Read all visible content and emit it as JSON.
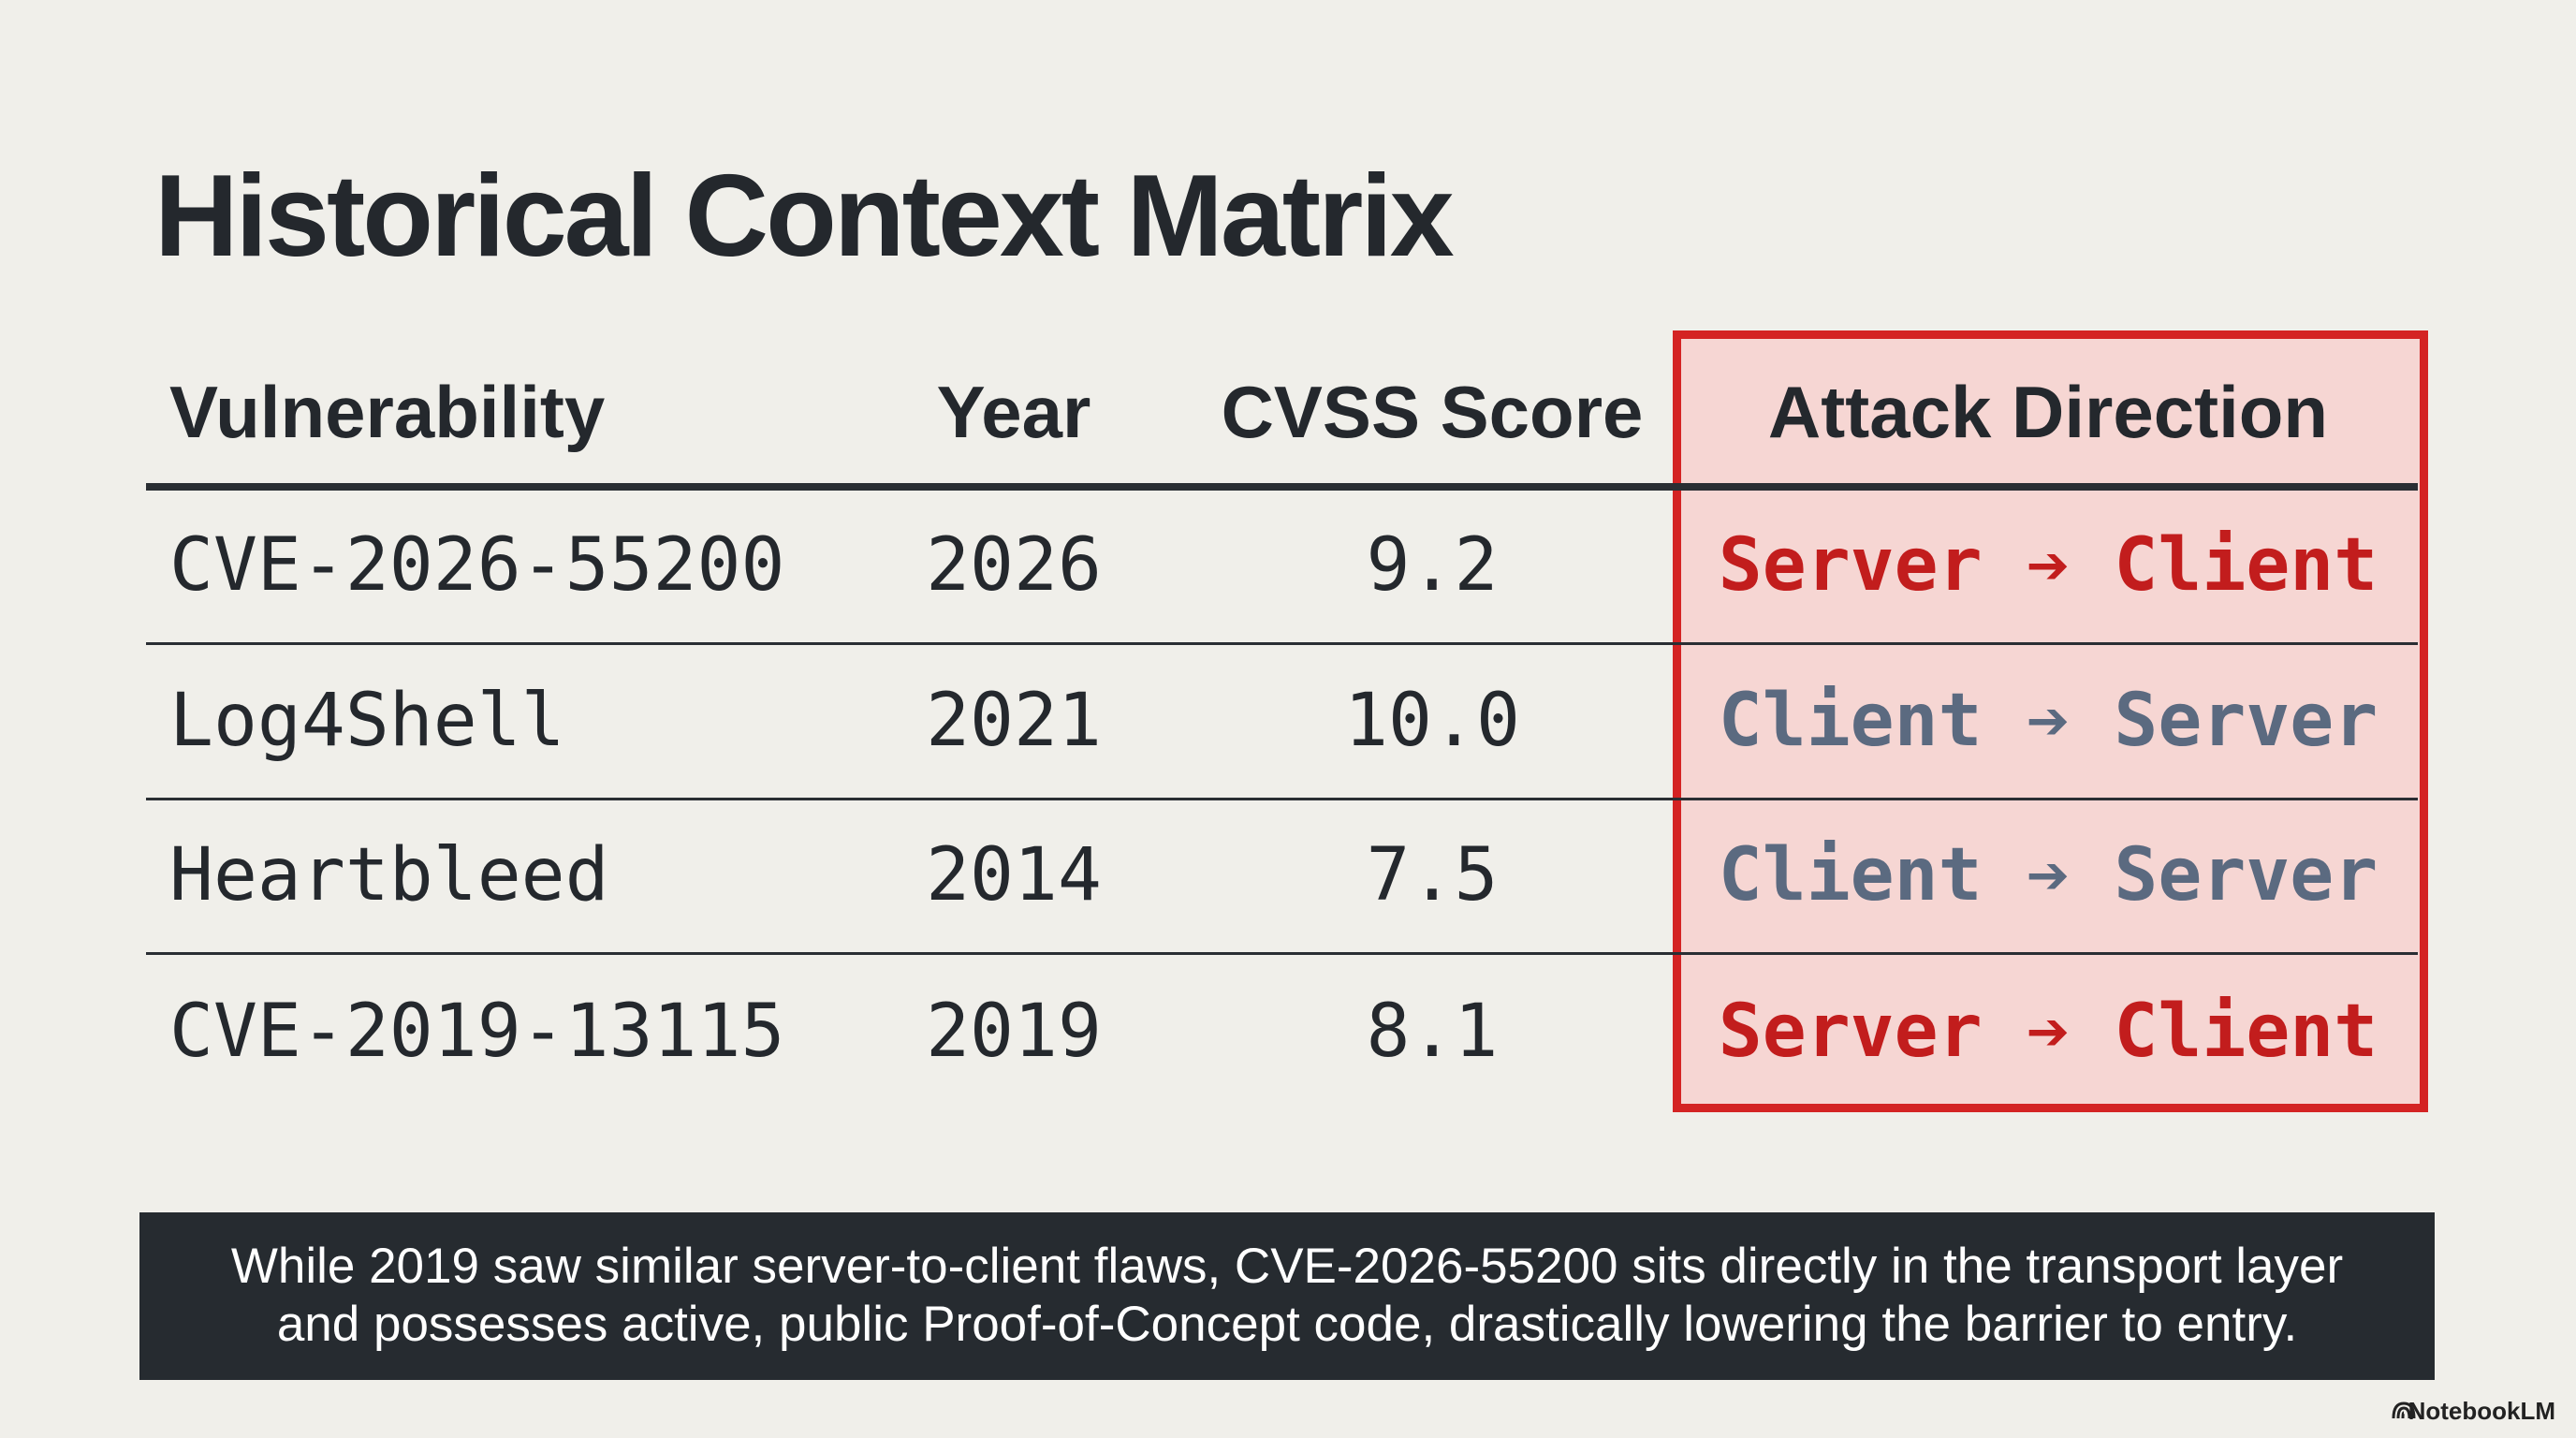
{
  "title": "Historical Context Matrix",
  "table": {
    "headers": [
      "Vulnerability",
      "Year",
      "CVSS Score",
      "Attack Direction"
    ],
    "rows": [
      [
        "CVE-2026-55200",
        "2026",
        "9.2",
        "Server ➔ Client"
      ],
      [
        "Log4Shell",
        "2021",
        "10.0",
        "Client ➔ Server"
      ],
      [
        "Heartbleed",
        "2014",
        "7.5",
        "Client ➔ Server"
      ],
      [
        "CVE-2019-13115",
        "2019",
        "8.1",
        "Server ➔ Client"
      ]
    ],
    "direction_colors": [
      "#c21d1d",
      "#5b6a80",
      "#5b6a80",
      "#c21d1d"
    ]
  },
  "footer": {
    "lines": [
      "While 2019 saw similar server-to-client flaws, CVE-2026-55200 sits directly in the transport layer",
      "and possesses active, public Proof-of-Concept code, drastically lowering the barrier to entry."
    ]
  },
  "watermark": "NotebookLM"
}
